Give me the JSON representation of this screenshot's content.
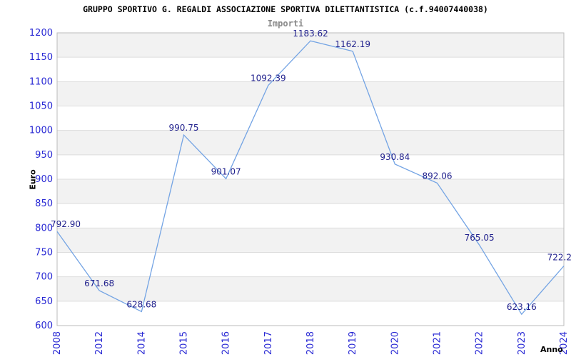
{
  "chart_data": {
    "type": "line",
    "title": "GRUPPO SPORTIVO G. REGALDI ASSOCIAZIONE SPORTIVA DILETTANTISTICA (c.f.94007440038)",
    "subtitle": "Importi",
    "xlabel": "Anno",
    "ylabel": "Euro",
    "categories": [
      "2008",
      "2012",
      "2014",
      "2015",
      "2016",
      "2017",
      "2018",
      "2019",
      "2020",
      "2021",
      "2022",
      "2023",
      "2024"
    ],
    "values": [
      792.9,
      671.68,
      628.68,
      990.75,
      901.07,
      1092.39,
      1183.62,
      1162.19,
      930.84,
      892.06,
      765.05,
      623.16,
      722.2
    ],
    "point_labels": [
      "792.90",
      "671.68",
      "628.68",
      "990.75",
      "901.07",
      "1092.39",
      "1183.62",
      "1162.19",
      "930.84",
      "892.06",
      "765.05",
      "623.16",
      "722.2"
    ],
    "ylim": [
      600,
      1200
    ],
    "ytick_step": 50,
    "yticks": [
      "600",
      "650",
      "700",
      "750",
      "800",
      "850",
      "900",
      "950",
      "1000",
      "1050",
      "1100",
      "1150",
      "1200"
    ],
    "grid": "horizontal-only",
    "bands": "alternating-50",
    "legend": "none",
    "colors": {
      "line": "#74a4e4",
      "tick_label": "#2828d4",
      "point_label": "#1f1f8c",
      "band": "#f2f2f2",
      "grid": "#dddddd",
      "border": "#bbbbbb",
      "title": "#000000",
      "subtitle": "#8a8a8a"
    }
  }
}
